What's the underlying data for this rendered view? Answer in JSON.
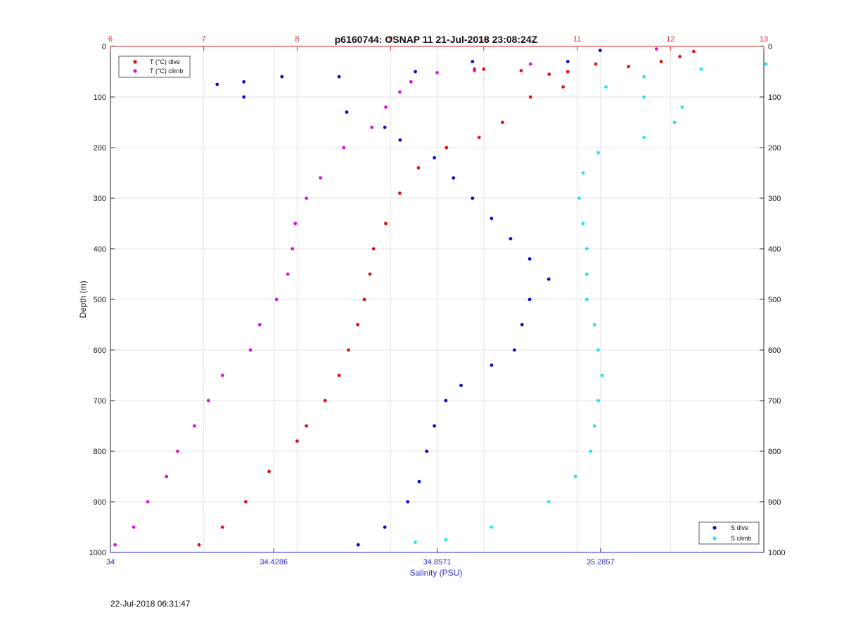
{
  "title": "p6160744: OSNAP 11 21-Jul-2018 23:08:24Z",
  "footer_timestamp": "22-Jul-2018 06:31:47",
  "colors": {
    "temp_axis": "#d42a2a",
    "sal_axis": "#2a2ac8",
    "t_dive": "#e01010",
    "t_climb": "#e010e0",
    "s_dive": "#0a0acc",
    "s_climb": "#20e6e6",
    "grid": "#e3e3e3",
    "frame": "#262626"
  },
  "chart_data": {
    "type": "scatter",
    "title": "p6160744: OSNAP 11 21-Jul-2018 23:08:24Z",
    "ylabel": "Depth (m)",
    "xlabel": "Salinity (PSU)",
    "y_reversed": true,
    "ylim": [
      0,
      1000
    ],
    "y_ticks": [
      "0",
      "100",
      "200",
      "300",
      "400",
      "500",
      "600",
      "700",
      "800",
      "900",
      "1000"
    ],
    "top_axis": {
      "unit": "T (°C)",
      "lim": [
        6,
        13
      ],
      "ticks": [
        "6",
        "7",
        "8",
        "9",
        "10",
        "11",
        "12",
        "13"
      ]
    },
    "bottom_axis": {
      "label": "Salinity (PSU)",
      "lim": [
        34,
        35.7143
      ],
      "ticks": [
        "34",
        "34.4286",
        "34.8571",
        "35.2857"
      ]
    },
    "grid": true,
    "legend_top": {
      "position": "top-left",
      "entries": [
        "T (°C) dive",
        "T (°C) climb"
      ]
    },
    "legend_bottom": {
      "position": "bottom-right",
      "entries": [
        "S dive",
        "S climb"
      ]
    },
    "series": [
      {
        "name": "T (°C) dive",
        "axis": "temperature",
        "points": [
          [
            12.25,
            10
          ],
          [
            12.1,
            20
          ],
          [
            11.9,
            30
          ],
          [
            11.55,
            40
          ],
          [
            11.2,
            35
          ],
          [
            10.9,
            50
          ],
          [
            10.7,
            55
          ],
          [
            10.4,
            48
          ],
          [
            10.0,
            45
          ],
          [
            9.9,
            45
          ],
          [
            10.85,
            80
          ],
          [
            10.5,
            100
          ],
          [
            10.2,
            150
          ],
          [
            9.95,
            180
          ],
          [
            9.6,
            200
          ],
          [
            9.3,
            240
          ],
          [
            9.1,
            290
          ],
          [
            8.95,
            350
          ],
          [
            8.82,
            400
          ],
          [
            8.78,
            450
          ],
          [
            8.72,
            500
          ],
          [
            8.65,
            550
          ],
          [
            8.55,
            600
          ],
          [
            8.45,
            650
          ],
          [
            8.3,
            700
          ],
          [
            8.1,
            750
          ],
          [
            8.0,
            780
          ],
          [
            7.7,
            840
          ],
          [
            7.45,
            900
          ],
          [
            7.2,
            950
          ],
          [
            6.95,
            985
          ]
        ]
      },
      {
        "name": "T (°C) climb",
        "axis": "temperature",
        "points": [
          [
            11.85,
            5
          ],
          [
            10.5,
            35
          ],
          [
            9.9,
            48
          ],
          [
            9.5,
            52
          ],
          [
            9.22,
            70
          ],
          [
            9.1,
            90
          ],
          [
            8.95,
            120
          ],
          [
            8.8,
            160
          ],
          [
            8.5,
            200
          ],
          [
            8.25,
            260
          ],
          [
            8.1,
            300
          ],
          [
            7.98,
            350
          ],
          [
            7.95,
            400
          ],
          [
            7.9,
            450
          ],
          [
            7.78,
            500
          ],
          [
            7.6,
            550
          ],
          [
            7.5,
            600
          ],
          [
            7.2,
            650
          ],
          [
            7.05,
            700
          ],
          [
            6.9,
            750
          ],
          [
            6.72,
            800
          ],
          [
            6.6,
            850
          ],
          [
            6.4,
            900
          ],
          [
            6.25,
            950
          ],
          [
            6.05,
            985
          ]
        ]
      },
      {
        "name": "S dive",
        "axis": "salinity",
        "points": [
          [
            35.285,
            8
          ],
          [
            35.2,
            30
          ],
          [
            34.95,
            30
          ],
          [
            34.8,
            50
          ],
          [
            34.6,
            60
          ],
          [
            34.45,
            60
          ],
          [
            34.35,
            70
          ],
          [
            34.28,
            75
          ],
          [
            34.35,
            100
          ],
          [
            34.62,
            130
          ],
          [
            34.72,
            160
          ],
          [
            34.76,
            185
          ],
          [
            34.85,
            220
          ],
          [
            34.9,
            260
          ],
          [
            34.95,
            300
          ],
          [
            35.0,
            340
          ],
          [
            35.05,
            380
          ],
          [
            35.1,
            420
          ],
          [
            35.15,
            460
          ],
          [
            35.1,
            500
          ],
          [
            35.08,
            550
          ],
          [
            35.06,
            600
          ],
          [
            35.0,
            630
          ],
          [
            34.92,
            670
          ],
          [
            34.88,
            700
          ],
          [
            34.85,
            750
          ],
          [
            34.83,
            800
          ],
          [
            34.81,
            860
          ],
          [
            34.78,
            900
          ],
          [
            34.72,
            950
          ],
          [
            34.65,
            985
          ]
        ]
      },
      {
        "name": "S climb",
        "axis": "salinity",
        "points": [
          [
            35.72,
            35
          ],
          [
            35.55,
            45
          ],
          [
            35.4,
            60
          ],
          [
            35.3,
            80
          ],
          [
            35.4,
            100
          ],
          [
            35.5,
            120
          ],
          [
            35.48,
            150
          ],
          [
            35.4,
            180
          ],
          [
            35.28,
            210
          ],
          [
            35.24,
            250
          ],
          [
            35.23,
            300
          ],
          [
            35.24,
            350
          ],
          [
            35.25,
            400
          ],
          [
            35.25,
            450
          ],
          [
            35.25,
            500
          ],
          [
            35.27,
            550
          ],
          [
            35.28,
            600
          ],
          [
            35.29,
            650
          ],
          [
            35.28,
            700
          ],
          [
            35.27,
            750
          ],
          [
            35.26,
            800
          ],
          [
            35.22,
            850
          ],
          [
            35.15,
            900
          ],
          [
            35.0,
            950
          ],
          [
            34.88,
            975
          ],
          [
            34.8,
            980
          ]
        ]
      }
    ]
  }
}
